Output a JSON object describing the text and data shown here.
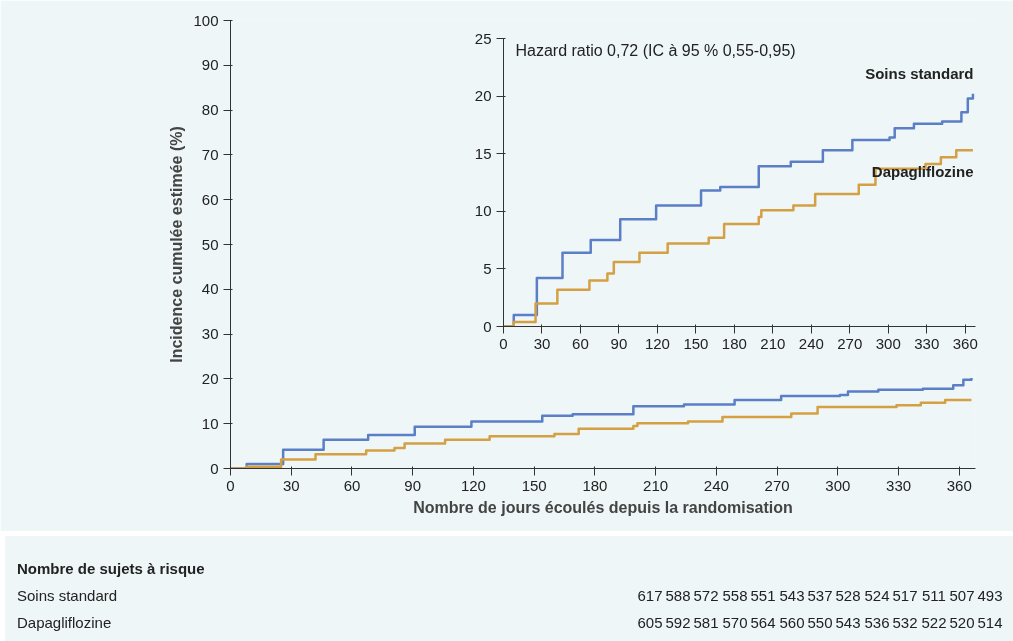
{
  "chart_data": [
    {
      "type": "step",
      "xlabel": "Nombre de jours écoulés depuis la randomisation",
      "ylabel": "Incidence cumulée estimée (%)",
      "xlim": [
        0,
        368
      ],
      "ylim": [
        0,
        100
      ],
      "xticks": [
        0,
        30,
        60,
        90,
        120,
        150,
        180,
        210,
        240,
        270,
        300,
        330,
        360
      ],
      "yticks": [
        0,
        10,
        20,
        30,
        40,
        50,
        60,
        70,
        80,
        90,
        100
      ],
      "grid": false,
      "line_style": "solid",
      "series": [
        {
          "color": "#5b7fc6",
          "x": [
            0,
            8,
            26,
            46,
            68,
            91,
            119,
            154,
            169,
            199,
            224,
            249,
            272,
            301,
            305,
            320,
            342,
            357,
            362,
            366
          ],
          "values": [
            0,
            1.0,
            4.2,
            6.4,
            7.5,
            9.3,
            10.5,
            11.8,
            12.1,
            13.9,
            14.3,
            15.3,
            16.2,
            16.4,
            17.2,
            17.6,
            17.8,
            18.6,
            19.8,
            20.2
          ]
        },
        {
          "color": "#d4a043",
          "x": [
            0,
            8,
            25,
            42,
            67,
            81,
            86,
            106,
            128,
            160,
            172,
            199,
            201,
            226,
            243,
            277,
            290,
            329,
            341,
            353,
            366
          ],
          "values": [
            0,
            0.4,
            2.0,
            3.2,
            4.0,
            4.6,
            5.6,
            6.4,
            7.2,
            7.7,
            8.9,
            9.5,
            10.1,
            10.5,
            11.5,
            12.3,
            13.7,
            14.1,
            14.7,
            15.3,
            15.3
          ]
        }
      ],
      "annotations": [
        "Nombre de sujets à risque",
        "Soins standard 617 588 572 558 551 543 537 528 524 517 511 507 493",
        "Dapagliflozine 605 592 581 570 564 560 550 543 536 532 522 520 514"
      ]
    },
    {
      "type": "step",
      "xlim": [
        0,
        368
      ],
      "ylim": [
        0,
        25
      ],
      "xticks": [
        0,
        30,
        60,
        90,
        120,
        150,
        180,
        210,
        240,
        270,
        300,
        330,
        360
      ],
      "yticks": [
        0,
        5,
        10,
        15,
        20,
        25
      ],
      "grid": false,
      "line_style": "solid",
      "series": [
        {
          "name": "Soins standard",
          "color": "#5b7fc6",
          "x": [
            0,
            8,
            26,
            46,
            68,
            91,
            119,
            154,
            169,
            199,
            224,
            249,
            272,
            301,
            305,
            320,
            342,
            357,
            362,
            366
          ],
          "values": [
            0,
            1.0,
            4.2,
            6.4,
            7.5,
            9.3,
            10.5,
            11.8,
            12.1,
            13.9,
            14.3,
            15.3,
            16.2,
            16.4,
            17.2,
            17.6,
            17.8,
            18.6,
            19.8,
            20.2
          ]
        },
        {
          "name": "Dapagliflozine",
          "color": "#d4a043",
          "x": [
            0,
            8,
            25,
            42,
            67,
            81,
            86,
            106,
            128,
            160,
            172,
            199,
            201,
            226,
            243,
            277,
            290,
            329,
            341,
            353,
            366
          ],
          "values": [
            0,
            0.4,
            2.0,
            3.2,
            4.0,
            4.6,
            5.6,
            6.4,
            7.2,
            7.7,
            8.9,
            9.5,
            10.1,
            10.5,
            11.5,
            12.3,
            13.7,
            14.1,
            14.7,
            15.3,
            15.3
          ]
        }
      ],
      "annotations": [
        "Hazard ratio 0,72 (IC à 95 % 0,55-0,95)"
      ]
    }
  ]
}
